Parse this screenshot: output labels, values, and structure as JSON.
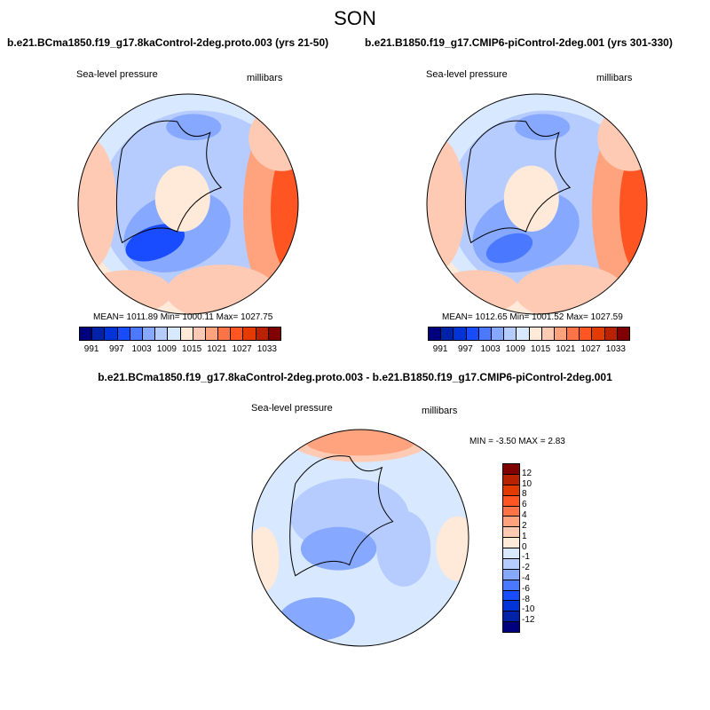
{
  "title": "SON",
  "panels": [
    {
      "subtitle": "b.e21.BCma1850.f19_g17.8kaControl-2deg.proto.003 (yrs 21-50)",
      "left_label": "Sea-level pressure",
      "right_label": "millibars",
      "stats": "MEAN= 1011.89  Min= 1000.11  Max= 1027.75"
    },
    {
      "subtitle": "b.e21.B1850.f19_g17.CMIP6-piControl-2deg.001 (yrs 301-330)",
      "left_label": "Sea-level pressure",
      "right_label": "millibars",
      "stats": "MEAN= 1012.65  Min= 1001.52  Max= 1027.59"
    },
    {
      "subtitle": "b.e21.BCma1850.f19_g17.8kaControl-2deg.proto.003 - b.e21.B1850.f19_g17.CMIP6-piControl-2deg.001",
      "left_label": "Sea-level pressure",
      "right_label": "millibars",
      "stats": "MIN =  -3.50 MAX =   2.83"
    }
  ],
  "colorbar_levels": [
    "991",
    "997",
    "1003",
    "1009",
    "1015",
    "1021",
    "1027",
    "1033"
  ],
  "diff_colorbar_levels": [
    "12",
    "10",
    "8",
    "6",
    "4",
    "2",
    "1",
    "0",
    "-1",
    "-2",
    "-4",
    "-6",
    "-8",
    "-10",
    "-12"
  ],
  "palette": [
    "#00007f",
    "#0022a8",
    "#0033d8",
    "#1a4cff",
    "#4a78ff",
    "#86a8ff",
    "#b6ccff",
    "#d8e8ff",
    "#ffe9d9",
    "#ffcab3",
    "#ffa37f",
    "#ff7447",
    "#ff5522",
    "#e33a00",
    "#b82200",
    "#800000"
  ]
}
